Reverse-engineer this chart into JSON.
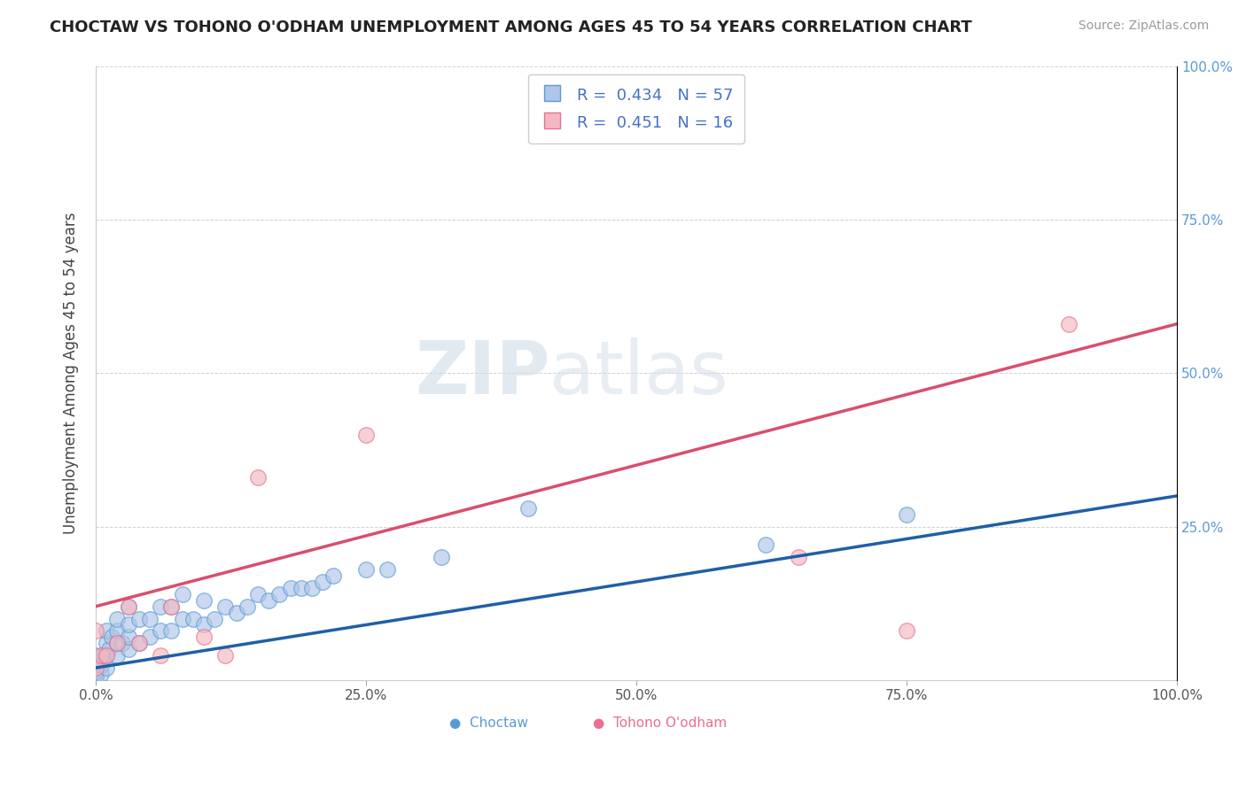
{
  "title": "CHOCTAW VS TOHONO O'ODHAM UNEMPLOYMENT AMONG AGES 45 TO 54 YEARS CORRELATION CHART",
  "source": "Source: ZipAtlas.com",
  "ylabel": "Unemployment Among Ages 45 to 54 years",
  "xlim": [
    0,
    1.0
  ],
  "ylim": [
    0,
    1.0
  ],
  "xticks": [
    0.0,
    0.25,
    0.5,
    0.75,
    1.0
  ],
  "xticklabels": [
    "0.0%",
    "25.0%",
    "50.0%",
    "75.0%",
    "100.0%"
  ],
  "yticks": [
    0.0,
    0.25,
    0.5,
    0.75,
    1.0
  ],
  "right_yticklabels": [
    "",
    "25.0%",
    "50.0%",
    "75.0%",
    "100.0%"
  ],
  "choctaw_color": "#aec6e8",
  "choctaw_edge": "#5b9bd5",
  "tohono_color": "#f4b8c1",
  "tohono_edge": "#e87090",
  "trend_choctaw_color": "#1f5fa6",
  "trend_tohono_color": "#d94f6b",
  "legend_r1": "0.434",
  "legend_n1": "57",
  "legend_r2": "0.451",
  "legend_n2": "16",
  "choctaw_x": [
    0.0,
    0.0,
    0.0,
    0.0,
    0.0,
    0.0,
    0.0,
    0.0,
    0.005,
    0.005,
    0.007,
    0.01,
    0.01,
    0.01,
    0.01,
    0.012,
    0.015,
    0.02,
    0.02,
    0.02,
    0.02,
    0.025,
    0.03,
    0.03,
    0.03,
    0.03,
    0.04,
    0.04,
    0.05,
    0.05,
    0.06,
    0.06,
    0.07,
    0.07,
    0.08,
    0.08,
    0.09,
    0.1,
    0.1,
    0.11,
    0.12,
    0.13,
    0.14,
    0.15,
    0.16,
    0.17,
    0.18,
    0.19,
    0.2,
    0.21,
    0.22,
    0.25,
    0.27,
    0.32,
    0.4,
    0.62,
    0.75
  ],
  "choctaw_y": [
    0.0,
    0.005,
    0.01,
    0.015,
    0.02,
    0.025,
    0.03,
    0.04,
    0.01,
    0.025,
    0.04,
    0.02,
    0.04,
    0.06,
    0.08,
    0.05,
    0.07,
    0.04,
    0.06,
    0.08,
    0.1,
    0.06,
    0.05,
    0.07,
    0.09,
    0.12,
    0.06,
    0.1,
    0.07,
    0.1,
    0.08,
    0.12,
    0.08,
    0.12,
    0.1,
    0.14,
    0.1,
    0.09,
    0.13,
    0.1,
    0.12,
    0.11,
    0.12,
    0.14,
    0.13,
    0.14,
    0.15,
    0.15,
    0.15,
    0.16,
    0.17,
    0.18,
    0.18,
    0.2,
    0.28,
    0.22,
    0.27
  ],
  "tohono_x": [
    0.0,
    0.0,
    0.005,
    0.01,
    0.02,
    0.03,
    0.04,
    0.06,
    0.07,
    0.1,
    0.12,
    0.15,
    0.25,
    0.65,
    0.75,
    0.9
  ],
  "tohono_y": [
    0.02,
    0.08,
    0.04,
    0.04,
    0.06,
    0.12,
    0.06,
    0.04,
    0.12,
    0.07,
    0.04,
    0.33,
    0.4,
    0.2,
    0.08,
    0.58
  ],
  "choctaw_trend_x": [
    0.0,
    1.0
  ],
  "choctaw_trend_y": [
    0.02,
    0.3
  ],
  "tohono_trend_x": [
    0.0,
    1.0
  ],
  "tohono_trend_y": [
    0.12,
    0.58
  ]
}
